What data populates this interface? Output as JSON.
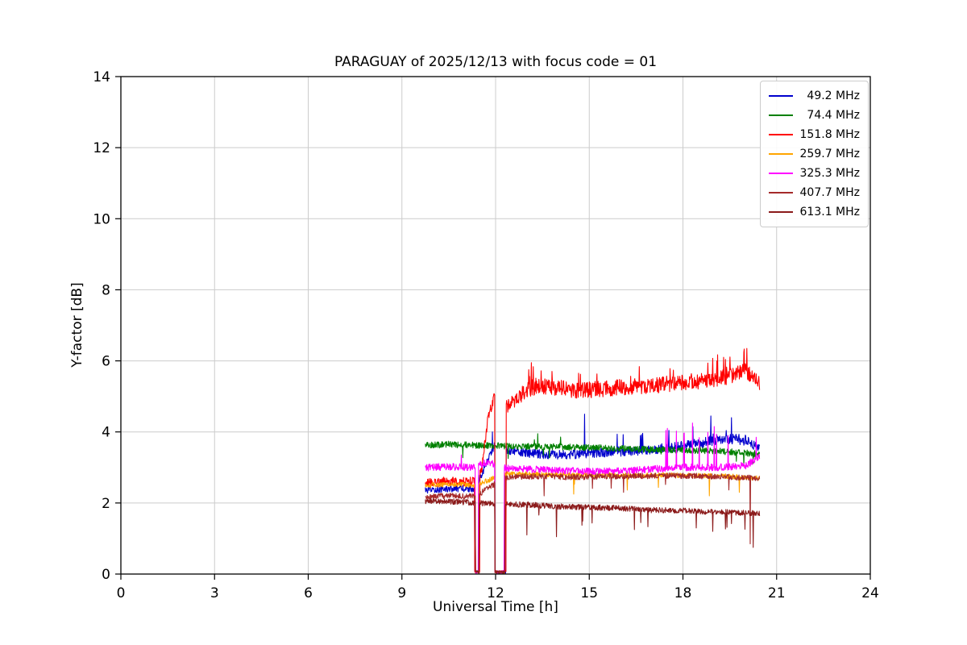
{
  "chart_data": {
    "type": "line",
    "title": "PARAGUAY of 2025/12/13 with focus code = 01",
    "xlabel": "Universal Time [h]",
    "ylabel": "Y-factor [dB]",
    "xlim": [
      0,
      24
    ],
    "ylim": [
      0,
      14
    ],
    "xticks": [
      0,
      3,
      6,
      9,
      12,
      15,
      18,
      21,
      24
    ],
    "yticks": [
      0,
      2,
      4,
      6,
      8,
      10,
      12,
      14
    ],
    "grid": true,
    "legend_position": "upper right",
    "series": [
      {
        "name": "49.2 MHz",
        "label": "  49.2 MHz",
        "color": "#0000cd",
        "x_range": [
          9.75,
          20.45
        ],
        "mean_points": [
          [
            9.75,
            2.35
          ],
          [
            10.5,
            2.4
          ],
          [
            11.33,
            2.4
          ],
          [
            11.6,
            2.9
          ],
          [
            11.95,
            3.6
          ],
          [
            12.33,
            3.5
          ],
          [
            13,
            3.4
          ],
          [
            14,
            3.35
          ],
          [
            15,
            3.4
          ],
          [
            16,
            3.45
          ],
          [
            17,
            3.5
          ],
          [
            18,
            3.6
          ],
          [
            18.6,
            3.7
          ],
          [
            19.2,
            3.8
          ],
          [
            19.7,
            3.8
          ],
          [
            20.1,
            3.75
          ],
          [
            20.45,
            3.55
          ]
        ],
        "noise": [
          [
            9.75,
            0.09
          ],
          [
            11.3,
            0.09
          ],
          [
            12.4,
            0.12
          ],
          [
            14,
            0.13
          ],
          [
            20.45,
            0.15
          ]
        ],
        "dropouts": [
          [
            11.33,
            11.47
          ],
          [
            11.98,
            12.33
          ]
        ],
        "spike_zones": [
          {
            "range": [
              13.8,
              20.35
            ],
            "prob": 0.015,
            "amp": 0.6,
            "dir": 1
          }
        ],
        "point_spikes": [
          {
            "x": 11.9,
            "y": 4.0
          },
          {
            "x": 14.85,
            "y": 4.5
          },
          {
            "x": 18.9,
            "y": 4.45
          },
          {
            "x": 19.55,
            "y": 4.4
          }
        ]
      },
      {
        "name": "74.4 MHz",
        "label": "  74.4 MHz",
        "color": "#008000",
        "x_range": [
          9.75,
          20.45
        ],
        "mean_points": [
          [
            9.75,
            3.62
          ],
          [
            10.5,
            3.65
          ],
          [
            11.5,
            3.62
          ],
          [
            12.5,
            3.6
          ],
          [
            14,
            3.58
          ],
          [
            15.5,
            3.55
          ],
          [
            17,
            3.5
          ],
          [
            18.5,
            3.48
          ],
          [
            19.5,
            3.44
          ],
          [
            20.45,
            3.38
          ]
        ],
        "noise": 0.09,
        "dropouts": [],
        "spike_zones": [
          {
            "range": [
              10,
              20.3
            ],
            "prob": 0.005,
            "amp": 0.3,
            "dir": -1
          },
          {
            "range": [
              12.5,
              20.3
            ],
            "prob": 0.004,
            "amp": 0.25,
            "dir": 1
          }
        ],
        "point_spikes": [
          {
            "x": 13.35,
            "y": 3.95
          },
          {
            "x": 19.95,
            "y": 3.05
          }
        ]
      },
      {
        "name": "151.8 MHz",
        "label": "151.8 MHz",
        "color": "#ff0000",
        "x_range": [
          9.75,
          20.45
        ],
        "mean_points": [
          [
            9.75,
            2.55
          ],
          [
            10.3,
            2.6
          ],
          [
            11.33,
            2.6
          ],
          [
            11.55,
            2.9
          ],
          [
            11.75,
            4.35
          ],
          [
            11.97,
            5.05
          ],
          [
            12.33,
            4.7
          ],
          [
            12.6,
            4.85
          ],
          [
            13,
            5.2
          ],
          [
            13.4,
            5.3
          ],
          [
            14,
            5.25
          ],
          [
            14.6,
            5.15
          ],
          [
            15.2,
            5.2
          ],
          [
            16,
            5.25
          ],
          [
            17,
            5.3
          ],
          [
            18,
            5.4
          ],
          [
            18.8,
            5.45
          ],
          [
            19.5,
            5.55
          ],
          [
            20,
            5.7
          ],
          [
            20.25,
            5.6
          ],
          [
            20.45,
            5.35
          ]
        ],
        "noise": [
          [
            9.75,
            0.13
          ],
          [
            11.3,
            0.13
          ],
          [
            12.4,
            0.2
          ],
          [
            13,
            0.23
          ],
          [
            20.45,
            0.23
          ]
        ],
        "dropouts": [
          [
            11.33,
            11.5
          ],
          [
            11.98,
            12.33
          ]
        ],
        "spike_zones": [
          {
            "range": [
              12.9,
              15.4
            ],
            "prob": 0.045,
            "amp": 0.55,
            "dir": 1
          },
          {
            "range": [
              15.4,
              17.4
            ],
            "prob": 0.02,
            "amp": 0.4,
            "dir": 1
          },
          {
            "range": [
              17.4,
              20.2
            ],
            "prob": 0.04,
            "amp": 0.5,
            "dir": 1
          }
        ],
        "point_spikes": [
          {
            "x": 13.15,
            "y": 5.95
          },
          {
            "x": 19.3,
            "y": 6.1
          },
          {
            "x": 20.05,
            "y": 6.35
          }
        ]
      },
      {
        "name": "259.7 MHz",
        "label": "259.7 MHz",
        "color": "#ffa500",
        "x_range": [
          9.75,
          20.45
        ],
        "mean_points": [
          [
            9.75,
            2.5
          ],
          [
            10.6,
            2.53
          ],
          [
            11.33,
            2.5
          ],
          [
            12.33,
            2.82
          ],
          [
            14,
            2.8
          ],
          [
            16,
            2.78
          ],
          [
            18,
            2.78
          ],
          [
            19.5,
            2.75
          ],
          [
            20.45,
            2.7
          ]
        ],
        "noise": 0.07,
        "dropouts": [
          [
            11.35,
            11.47
          ],
          [
            11.98,
            12.3
          ]
        ],
        "spike_zones": [
          {
            "range": [
              13,
              20.3
            ],
            "prob": 0.008,
            "amp": 0.45,
            "dir": -1
          }
        ],
        "point_spikes": [
          {
            "x": 14.5,
            "y": 2.25
          },
          {
            "x": 18.85,
            "y": 2.2
          },
          {
            "x": 19.8,
            "y": 2.3
          }
        ]
      },
      {
        "name": "325.3 MHz",
        "label": "325.3 MHz",
        "color": "#ff00ff",
        "x_range": [
          9.75,
          20.45
        ],
        "mean_points": [
          [
            9.75,
            3.0
          ],
          [
            10.5,
            3.02
          ],
          [
            11.33,
            3.0
          ],
          [
            11.7,
            3.15
          ],
          [
            12.33,
            2.98
          ],
          [
            13,
            2.95
          ],
          [
            14,
            2.92
          ],
          [
            15,
            2.9
          ],
          [
            16,
            2.9
          ],
          [
            17,
            2.95
          ],
          [
            18,
            3.0
          ],
          [
            19,
            3.0
          ],
          [
            20,
            3.05
          ],
          [
            20.45,
            3.3
          ]
        ],
        "noise": 0.1,
        "dropouts": [
          [
            11.35,
            11.45
          ],
          [
            11.98,
            12.28
          ]
        ],
        "spike_zones": [
          {
            "range": [
              17.35,
              19.65
            ],
            "prob": 0.03,
            "amp": 1.1,
            "dir": 1
          }
        ],
        "point_spikes": [
          {
            "x": 10.9,
            "y": 3.35
          },
          {
            "x": 17.5,
            "y": 4.1
          },
          {
            "x": 18.3,
            "y": 4.25
          },
          {
            "x": 19.0,
            "y": 4.15
          },
          {
            "x": 19.45,
            "y": 3.9
          },
          {
            "x": 20.35,
            "y": 3.85
          }
        ]
      },
      {
        "name": "407.7 MHz",
        "label": "407.7 MHz",
        "color": "#a52a2a",
        "x_range": [
          9.75,
          20.45
        ],
        "mean_points": [
          [
            9.75,
            2.18
          ],
          [
            10.5,
            2.2
          ],
          [
            11.33,
            2.18
          ],
          [
            12.33,
            2.72
          ],
          [
            13,
            2.75
          ],
          [
            14.5,
            2.73
          ],
          [
            16,
            2.75
          ],
          [
            17.5,
            2.77
          ],
          [
            19,
            2.75
          ],
          [
            20.45,
            2.7
          ]
        ],
        "noise": 0.08,
        "dropouts": [
          [
            11.35,
            11.47
          ],
          [
            11.98,
            12.3
          ]
        ],
        "spike_zones": [
          {
            "range": [
              13,
              20
            ],
            "prob": 0.007,
            "amp": 0.4,
            "dir": -1
          }
        ],
        "point_spikes": [
          {
            "x": 13.55,
            "y": 2.2
          },
          {
            "x": 16.1,
            "y": 2.3
          },
          {
            "x": 20.15,
            "y": 0.85
          }
        ]
      },
      {
        "name": "613.1 MHz",
        "label": "613.1 MHz",
        "color": "#8b1a1a",
        "x_range": [
          9.75,
          20.45
        ],
        "mean_points": [
          [
            9.75,
            2.05
          ],
          [
            10.5,
            2.05
          ],
          [
            11.33,
            2.0
          ],
          [
            12.33,
            1.97
          ],
          [
            13,
            1.95
          ],
          [
            14,
            1.9
          ],
          [
            15,
            1.88
          ],
          [
            16,
            1.85
          ],
          [
            17,
            1.8
          ],
          [
            18,
            1.78
          ],
          [
            19,
            1.75
          ],
          [
            20,
            1.72
          ],
          [
            20.45,
            1.7
          ]
        ],
        "noise": 0.08,
        "dropouts": [
          [
            11.35,
            11.47
          ],
          [
            11.98,
            12.3
          ]
        ],
        "spike_zones": [
          {
            "range": [
              12.8,
              20.3
            ],
            "prob": 0.01,
            "amp": 0.5,
            "dir": -1
          }
        ],
        "point_spikes": [
          {
            "x": 13.0,
            "y": 1.1
          },
          {
            "x": 13.95,
            "y": 1.05
          },
          {
            "x": 16.45,
            "y": 1.25
          },
          {
            "x": 18.95,
            "y": 1.2
          },
          {
            "x": 20.25,
            "y": 0.75
          }
        ]
      }
    ]
  }
}
